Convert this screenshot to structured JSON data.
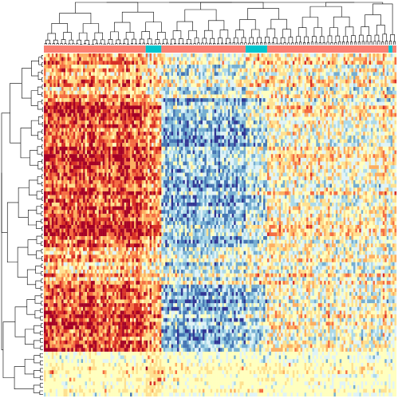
{
  "chart_data": {
    "type": "heatmap",
    "title": "",
    "xlabel": "",
    "ylabel": "",
    "n_columns": 180,
    "n_rows": 92,
    "value_range": [
      -1,
      1
    ],
    "colormap": [
      "#313695",
      "#4575b4",
      "#74add1",
      "#abd9e9",
      "#e0f3f8",
      "#ffffbf",
      "#fee090",
      "#fdae61",
      "#f46d43",
      "#d73027",
      "#a50026"
    ],
    "column_annotation": {
      "groups": [
        {
          "start": 0,
          "end": 52,
          "color": "#fa8072"
        },
        {
          "start": 52,
          "end": 60,
          "color": "#00c5cd"
        },
        {
          "start": 60,
          "end": 103,
          "color": "#fa8072"
        },
        {
          "start": 103,
          "end": 114,
          "color": "#00c5cd"
        },
        {
          "start": 114,
          "end": 176,
          "color": "#fa8072"
        },
        {
          "start": 176,
          "end": 178,
          "color": "#00c5cd"
        },
        {
          "start": 178,
          "end": 180,
          "color": "#fa8072"
        }
      ]
    },
    "column_clusters": [
      {
        "start": 0,
        "end": 52,
        "level": "high"
      },
      {
        "start": 52,
        "end": 60,
        "level": "mixed"
      },
      {
        "start": 60,
        "end": 103,
        "level": "low"
      },
      {
        "start": 103,
        "end": 114,
        "level": "mid"
      },
      {
        "start": 114,
        "end": 180,
        "level": "neutral"
      }
    ],
    "row_clusters": [
      {
        "start": 0,
        "end": 12,
        "pattern": "top"
      },
      {
        "start": 12,
        "end": 52,
        "pattern": "strong"
      },
      {
        "start": 52,
        "end": 62,
        "pattern": "mixed"
      },
      {
        "start": 62,
        "end": 80,
        "pattern": "strong"
      },
      {
        "start": 80,
        "end": 92,
        "pattern": "sparse"
      }
    ]
  }
}
